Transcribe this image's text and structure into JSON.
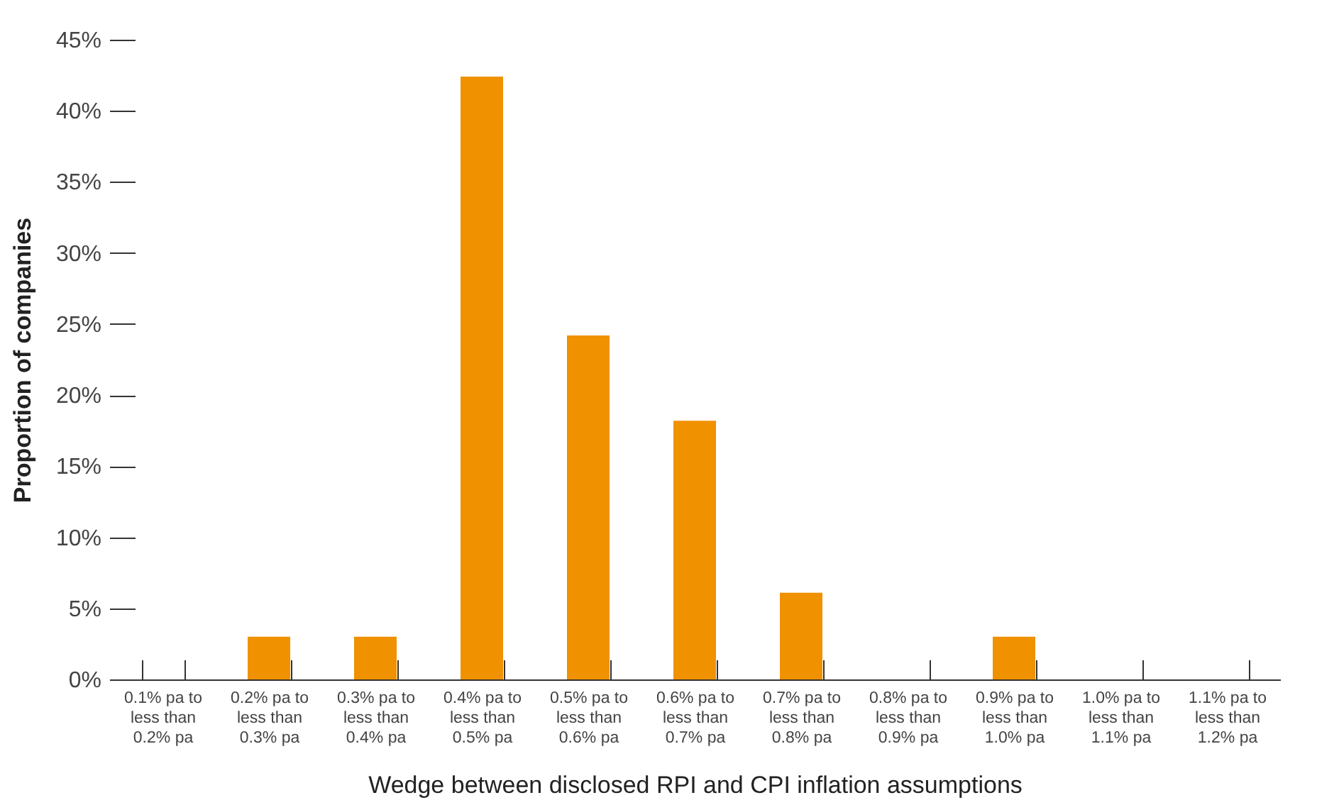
{
  "chart_data": {
    "type": "bar",
    "xlabel": "Wedge between disclosed RPI and CPI inflation assumptions",
    "ylabel": "Proportion of companies",
    "categories": [
      "0.1% pa to less than 0.2% pa",
      "0.2% pa to less than 0.3% pa",
      "0.3% pa to less than 0.4% pa",
      "0.4% pa to less than 0.5% pa",
      "0.5% pa to less than 0.6% pa",
      "0.6% pa to less than 0.7% pa",
      "0.7% pa to less than 0.8% pa",
      "0.8% pa to less than 0.9% pa",
      "0.9% pa to less than 1.0% pa",
      "1.0% pa to less than 1.1% pa",
      "1.1% pa to less than 1.2% pa"
    ],
    "values": [
      0,
      3.0,
      3.0,
      42.4,
      24.2,
      18.2,
      6.1,
      0,
      3.0,
      0,
      0
    ],
    "color": "#f09100",
    "ylim": [
      0,
      45
    ],
    "yticks": [
      {
        "value": 0,
        "label": "0%"
      },
      {
        "value": 5,
        "label": "5%"
      },
      {
        "value": 10,
        "label": "10%"
      },
      {
        "value": 15,
        "label": "15%"
      },
      {
        "value": 20,
        "label": "20%"
      },
      {
        "value": 25,
        "label": "25%"
      },
      {
        "value": 30,
        "label": "30%"
      },
      {
        "value": 35,
        "label": "35%"
      },
      {
        "value": 40,
        "label": "40%"
      },
      {
        "value": 45,
        "label": "45%"
      }
    ],
    "grid": false
  }
}
